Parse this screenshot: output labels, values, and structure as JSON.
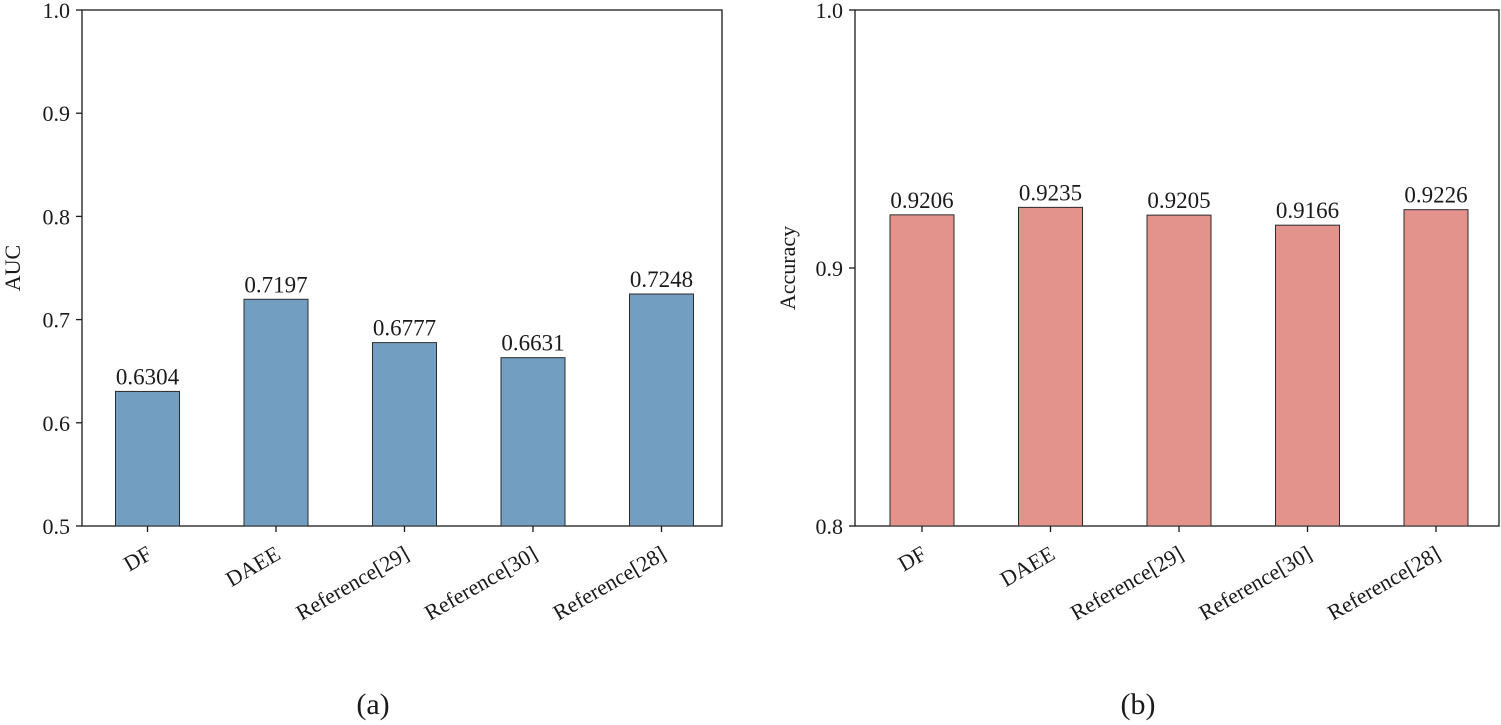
{
  "chart_data": [
    {
      "type": "bar",
      "categories": [
        "DF",
        "DAEE",
        "Reference[29]",
        "Reference[30]",
        "Reference[28]"
      ],
      "values": [
        0.6304,
        0.7197,
        0.6777,
        0.6631,
        0.7248
      ],
      "value_labels": [
        "0.6304",
        "0.7197",
        "0.6777",
        "0.6631",
        "0.7248"
      ],
      "ylabel": "AUC",
      "ylim": [
        0.5,
        1.0
      ],
      "yticks": [
        0.5,
        0.6,
        0.7,
        0.8,
        0.9,
        1.0
      ],
      "ytick_labels": [
        "0.5",
        "0.6",
        "0.7",
        "0.8",
        "0.9",
        "1.0"
      ],
      "bar_color": "#729fc1",
      "grid": false,
      "legend": "none",
      "caption": "(a)"
    },
    {
      "type": "bar",
      "categories": [
        "DF",
        "DAEE",
        "Reference[29]",
        "Reference[30]",
        "Reference[28]"
      ],
      "values": [
        0.9206,
        0.9235,
        0.9205,
        0.9166,
        0.9226
      ],
      "value_labels": [
        "0.9206",
        "0.9235",
        "0.9205",
        "0.9166",
        "0.9226"
      ],
      "ylabel": "Accuracy",
      "ylim": [
        0.8,
        1.0
      ],
      "yticks": [
        0.8,
        0.9,
        1.0
      ],
      "ytick_labels": [
        "0.8",
        "0.9",
        "1.0"
      ],
      "bar_color": "#e3938b",
      "grid": false,
      "legend": "none",
      "caption": "(b)"
    }
  ]
}
